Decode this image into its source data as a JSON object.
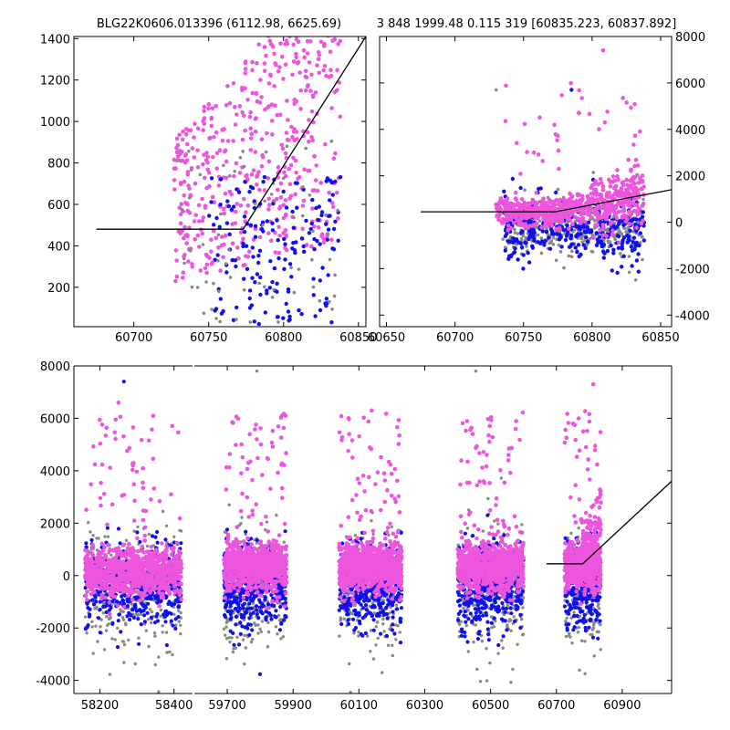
{
  "header": {
    "left_title": "BLG22K0606.013396 (6112.98, 6625.69)",
    "right_title": "3 848 1999.48 0.115 319 [60835.223, 60837.892]"
  },
  "colors": {
    "magenta": "#ee55dd",
    "blue": "#1010ee",
    "gray": "#888888",
    "line": "#000000"
  },
  "chart_data": [
    {
      "type": "scatter",
      "panel": "top-left",
      "xlim": [
        60660,
        60855
      ],
      "ylim": [
        10,
        1410
      ],
      "x_ticks": [
        60700,
        60750,
        60800,
        60850
      ],
      "y_ticks": [
        200,
        400,
        600,
        800,
        1000,
        1200,
        1400
      ],
      "y_axis_side": "left",
      "model_line": {
        "x": [
          60675,
          60773,
          60855
        ],
        "y": [
          480,
          480,
          1410
        ]
      }
    },
    {
      "type": "scatter",
      "panel": "top-right",
      "xlim": [
        60645,
        60858
      ],
      "ylim": [
        -4500,
        8000
      ],
      "x_ticks": [
        60650,
        60700,
        60750,
        60800,
        60850
      ],
      "y_ticks": [
        -4000,
        -2000,
        0,
        2000,
        4000,
        6000,
        8000
      ],
      "y_axis_side": "right",
      "model_line": {
        "x": [
          60675,
          60773,
          60858
        ],
        "y": [
          450,
          450,
          1400
        ]
      }
    },
    {
      "type": "scatter",
      "panel": "bottom",
      "segments": [
        {
          "xlim": [
            58130,
            58450
          ],
          "x_ticks": [
            58200,
            58400
          ]
        },
        {
          "xlim": [
            59600,
            61050
          ],
          "x_ticks": [
            59700,
            59900,
            60100,
            60300,
            60500,
            60700,
            60900
          ]
        }
      ],
      "ylim": [
        -4500,
        8000
      ],
      "y_ticks": [
        -4000,
        -2000,
        0,
        2000,
        4000,
        6000,
        8000
      ],
      "model_line": {
        "x": [
          60670,
          60780,
          61050
        ],
        "y": [
          450,
          450,
          3600
        ]
      },
      "season_centers": [
        58300,
        59780,
        60100,
        60470,
        60795
      ]
    }
  ]
}
